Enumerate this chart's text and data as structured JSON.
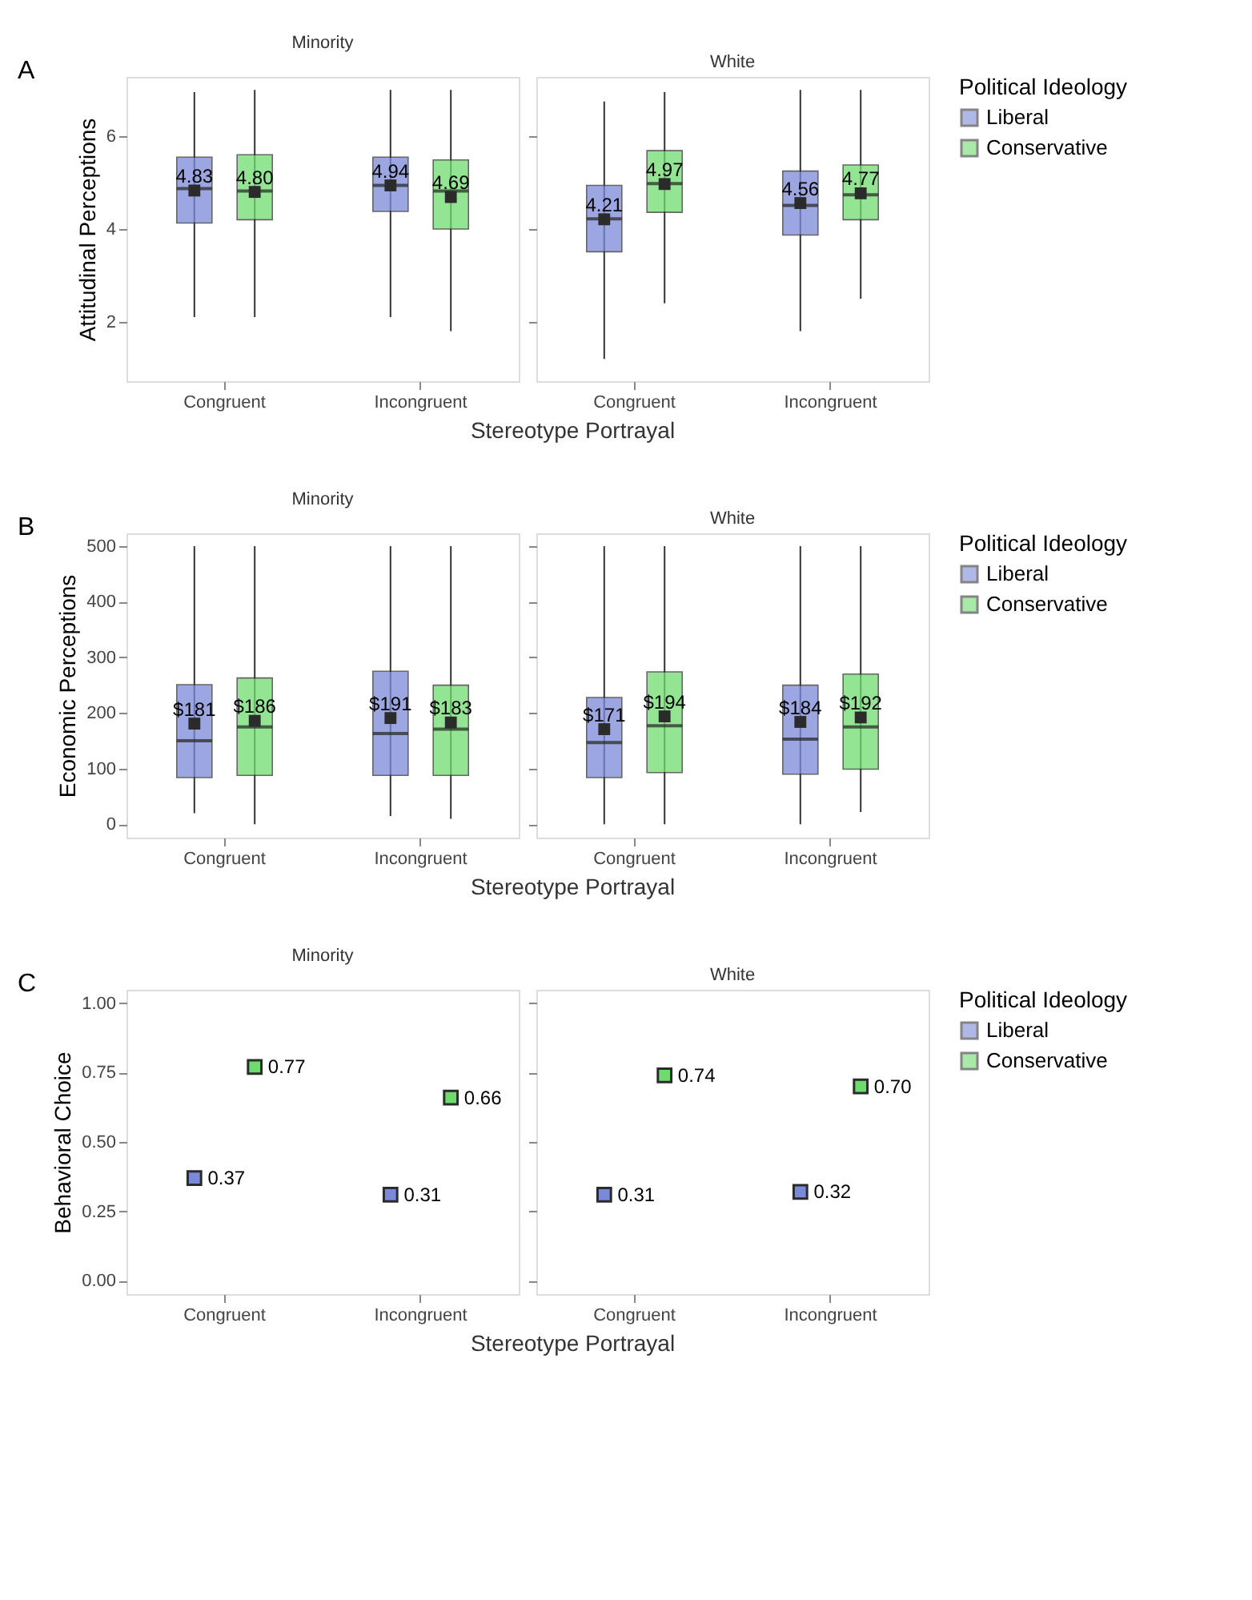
{
  "chart_data": [
    {
      "type": "box",
      "title": "Minority",
      "ylabel": "Attitudinal Perceptions",
      "xlabel": "Stereotype Portrayal",
      "annotations": [
        "A"
      ],
      "categories": [
        "Congruent",
        "Incongruent"
      ],
      "ylim": [
        0.72,
        7.28
      ],
      "yticks": [
        2,
        4,
        6
      ],
      "legend": "right",
      "grid": false,
      "series": [
        {
          "name": "Liberal",
          "color": "#7b8ad8",
          "boxes": [
            {
              "low": 2.1,
              "q1": 4.13,
              "median": 4.87,
              "q3": 5.55,
              "high": 6.95,
              "mean": 4.83
            },
            {
              "low": 2.1,
              "q1": 4.38,
              "median": 4.94,
              "q3": 5.55,
              "high": 7.0,
              "mean": 4.94
            }
          ],
          "value_labels": [
            "4.83",
            "4.94"
          ]
        },
        {
          "name": "Conservative",
          "color": "#6fdb6f",
          "boxes": [
            {
              "low": 2.1,
              "q1": 4.2,
              "median": 4.82,
              "q3": 5.6,
              "high": 7.0,
              "mean": 4.8
            },
            {
              "low": 1.8,
              "q1": 4.0,
              "median": 4.82,
              "q3": 5.49,
              "high": 7.0,
              "mean": 4.69
            }
          ],
          "value_labels": [
            "4.80",
            "4.69"
          ]
        }
      ]
    },
    {
      "type": "box",
      "title": "White",
      "categories": [
        "Congruent",
        "Incongruent"
      ],
      "ylim": [
        0.72,
        7.28
      ],
      "yticks": [
        2,
        4,
        6
      ],
      "tick_labels": "x",
      "legend": "right",
      "legend_title": "Political Ideology",
      "grid": false,
      "series": [
        {
          "name": "Liberal",
          "color": "#7b8ad8",
          "boxes": [
            {
              "low": 1.2,
              "q1": 3.51,
              "median": 4.22,
              "q3": 4.94,
              "high": 6.75,
              "mean": 4.21
            },
            {
              "low": 1.8,
              "q1": 3.87,
              "median": 4.51,
              "q3": 5.25,
              "high": 7.0,
              "mean": 4.56
            }
          ],
          "value_labels": [
            "4.21",
            "4.56"
          ]
        },
        {
          "name": "Conservative",
          "color": "#6fdb6f",
          "boxes": [
            {
              "low": 2.4,
              "q1": 4.36,
              "median": 4.98,
              "q3": 5.69,
              "high": 6.95,
              "mean": 4.97
            },
            {
              "low": 2.5,
              "q1": 4.2,
              "median": 4.74,
              "q3": 5.38,
              "high": 7.0,
              "mean": 4.77
            }
          ],
          "value_labels": [
            "4.97",
            "4.77"
          ]
        }
      ]
    },
    {
      "type": "box",
      "title": "Minority",
      "ylabel": "Economic Perceptions",
      "xlabel": "Stereotype Portrayal",
      "annotations": [
        "B"
      ],
      "categories": [
        "Congruent",
        "Incongruent"
      ],
      "ylim": [
        -24,
        523
      ],
      "yticks": [
        0,
        100,
        200,
        300,
        400,
        500
      ],
      "legend": "right",
      "grid": false,
      "series": [
        {
          "name": "Liberal",
          "color": "#7b8ad8",
          "boxes": [
            {
              "low": 20,
              "q1": 84,
              "median": 150,
              "q3": 251,
              "high": 500,
              "mean": 181
            },
            {
              "low": 15,
              "q1": 88,
              "median": 163,
              "q3": 275,
              "high": 500,
              "mean": 191
            }
          ],
          "value_labels": [
            "$181",
            "$191"
          ]
        },
        {
          "name": "Conservative",
          "color": "#6fdb6f",
          "boxes": [
            {
              "low": 0,
              "q1": 88,
              "median": 175,
              "q3": 263,
              "high": 500,
              "mean": 186
            },
            {
              "low": 10,
              "q1": 88,
              "median": 171,
              "q3": 250,
              "high": 500,
              "mean": 183
            }
          ],
          "value_labels": [
            "$186",
            "$183"
          ]
        }
      ]
    },
    {
      "type": "box",
      "title": "White",
      "categories": [
        "Congruent",
        "Incongruent"
      ],
      "ylim": [
        -24,
        523
      ],
      "yticks": [
        0,
        100,
        200,
        300,
        400,
        500
      ],
      "tick_labels": "x",
      "legend": "right",
      "legend_title": "Political Ideology",
      "grid": false,
      "series": [
        {
          "name": "Liberal",
          "color": "#7b8ad8",
          "boxes": [
            {
              "low": 0,
              "q1": 84,
              "median": 147,
              "q3": 228,
              "high": 500,
              "mean": 171
            },
            {
              "low": 0,
              "q1": 90,
              "median": 153,
              "q3": 250,
              "high": 500,
              "mean": 184
            }
          ],
          "value_labels": [
            "$171",
            "$184"
          ]
        },
        {
          "name": "Conservative",
          "color": "#6fdb6f",
          "boxes": [
            {
              "low": 0,
              "q1": 93,
              "median": 177,
              "q3": 274,
              "high": 500,
              "mean": 194
            },
            {
              "low": 22,
              "q1": 99,
              "median": 175,
              "q3": 270,
              "high": 500,
              "mean": 192
            }
          ],
          "value_labels": [
            "$194",
            "$192"
          ]
        }
      ]
    },
    {
      "type": "scatter",
      "title": "Minority",
      "ylabel": "Behavioral Choice",
      "xlabel": "Stereotype Portrayal",
      "annotations": [
        "C"
      ],
      "categories": [
        "Congruent",
        "Incongruent"
      ],
      "ylim": [
        -0.048,
        1.048
      ],
      "yticks": [
        {
          "value": 0,
          "label": "0.00"
        },
        {
          "value": 0.25,
          "label": "0.25"
        },
        {
          "value": 0.5,
          "label": "0.50"
        },
        {
          "value": 0.75,
          "label": "0.75"
        },
        {
          "value": 1,
          "label": "1.00"
        }
      ],
      "legend": "right",
      "grid": false,
      "marker": "square",
      "series": [
        {
          "name": "Liberal",
          "color": "#7b8ad8",
          "values": [
            0.37,
            0.31
          ],
          "value_labels": [
            "0.37",
            "0.31"
          ]
        },
        {
          "name": "Conservative",
          "color": "#6fdb6f",
          "values": [
            0.77,
            0.66
          ],
          "value_labels": [
            "0.77",
            "0.66"
          ]
        }
      ]
    },
    {
      "type": "scatter",
      "title": "White",
      "categories": [
        "Congruent",
        "Incongruent"
      ],
      "ylim": [
        -0.048,
        1.048
      ],
      "yticks": [
        0,
        0.25,
        0.5,
        0.75,
        1
      ],
      "tick_labels": "x",
      "legend": "right",
      "legend_title": "Political Ideology",
      "grid": false,
      "marker": "square",
      "series": [
        {
          "name": "Liberal",
          "color": "#7b8ad8",
          "values": [
            0.31,
            0.32
          ],
          "value_labels": [
            "0.31",
            "0.32"
          ]
        },
        {
          "name": "Conservative",
          "color": "#6fdb6f",
          "values": [
            0.74,
            0.7
          ],
          "value_labels": [
            "0.74",
            "0.70"
          ]
        }
      ]
    }
  ]
}
